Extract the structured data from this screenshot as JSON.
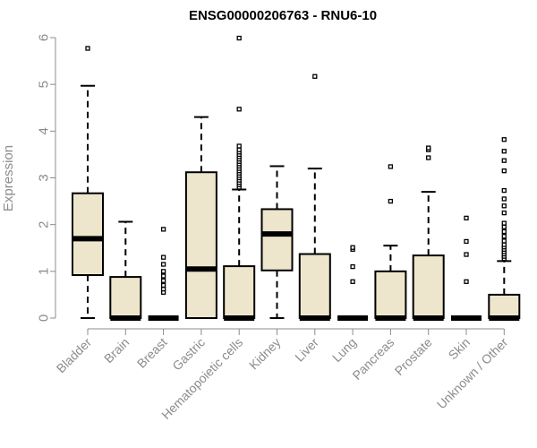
{
  "chart_data": {
    "type": "box",
    "title": "ENSG00000206763 - RNU6-10",
    "xlabel": "",
    "ylabel": "Expression",
    "ylim": [
      0,
      6
    ],
    "yticks": [
      0,
      1,
      2,
      3,
      4,
      5,
      6
    ],
    "grid": false,
    "colors": {
      "box_fill": "#ede6cc",
      "box_stroke": "#000000",
      "axis": "#8c8c8c",
      "text": "#8c8c8c"
    },
    "categories": [
      "Bladder",
      "Brain",
      "Breast",
      "Gastric",
      "Hematopoietic cells",
      "Kidney",
      "Liver",
      "Lung",
      "Pancreas",
      "Prostate",
      "Skin",
      "Unknown / Other"
    ],
    "boxes": [
      {
        "category": "Bladder",
        "whisker_low": 0,
        "q1": 0.92,
        "median": 1.7,
        "q3": 2.67,
        "whisker_high": 4.97,
        "outliers": [
          5.77
        ]
      },
      {
        "category": "Brain",
        "whisker_low": 0,
        "q1": 0,
        "median": 0,
        "q3": 0.88,
        "whisker_high": 2.06,
        "outliers": []
      },
      {
        "category": "Breast",
        "whisker_low": 0,
        "q1": 0,
        "median": 0,
        "q3": 0,
        "whisker_high": 0,
        "outliers": [
          0.55,
          0.62,
          0.7,
          0.8,
          0.9,
          1.0,
          1.15,
          1.3,
          1.9
        ]
      },
      {
        "category": "Gastric",
        "whisker_low": 0,
        "q1": 0,
        "median": 1.05,
        "q3": 3.12,
        "whisker_high": 4.3,
        "outliers": []
      },
      {
        "category": "Hematopoietic cells",
        "whisker_low": 0,
        "q1": 0,
        "median": 0,
        "q3": 1.11,
        "whisker_high": 2.75,
        "outliers": [
          2.8,
          2.85,
          2.9,
          2.95,
          3.0,
          3.05,
          3.1,
          3.15,
          3.2,
          3.25,
          3.3,
          3.35,
          3.4,
          3.45,
          3.5,
          3.55,
          3.6,
          3.68,
          4.47,
          5.99
        ]
      },
      {
        "category": "Kidney",
        "whisker_low": 0,
        "q1": 1.02,
        "median": 1.8,
        "q3": 2.33,
        "whisker_high": 3.25,
        "outliers": []
      },
      {
        "category": "Liver",
        "whisker_low": 0,
        "q1": 0,
        "median": 0,
        "q3": 1.37,
        "whisker_high": 3.2,
        "outliers": [
          5.17
        ]
      },
      {
        "category": "Lung",
        "whisker_low": 0,
        "q1": 0,
        "median": 0,
        "q3": 0,
        "whisker_high": 0,
        "outliers": [
          0.78,
          1.1,
          1.47,
          1.51
        ]
      },
      {
        "category": "Pancreas",
        "whisker_low": 0,
        "q1": 0,
        "median": 0,
        "q3": 1.0,
        "whisker_high": 1.55,
        "outliers": [
          2.5,
          3.24
        ]
      },
      {
        "category": "Prostate",
        "whisker_low": 0,
        "q1": 0,
        "median": 0,
        "q3": 1.34,
        "whisker_high": 2.7,
        "outliers": [
          3.43,
          3.6,
          3.64
        ]
      },
      {
        "category": "Skin",
        "whisker_low": 0,
        "q1": 0,
        "median": 0,
        "q3": 0,
        "whisker_high": 0,
        "outliers": [
          0.78,
          1.36,
          1.64,
          2.14
        ]
      },
      {
        "category": "Unknown / Other",
        "whisker_low": 0,
        "q1": 0,
        "median": 0,
        "q3": 0.5,
        "whisker_high": 1.22,
        "outliers": [
          1.27,
          1.32,
          1.37,
          1.42,
          1.47,
          1.52,
          1.57,
          1.65,
          1.75,
          1.85,
          1.95,
          2.03,
          2.25,
          2.4,
          2.55,
          2.73,
          3.15,
          3.37,
          3.57,
          3.82
        ]
      }
    ]
  }
}
